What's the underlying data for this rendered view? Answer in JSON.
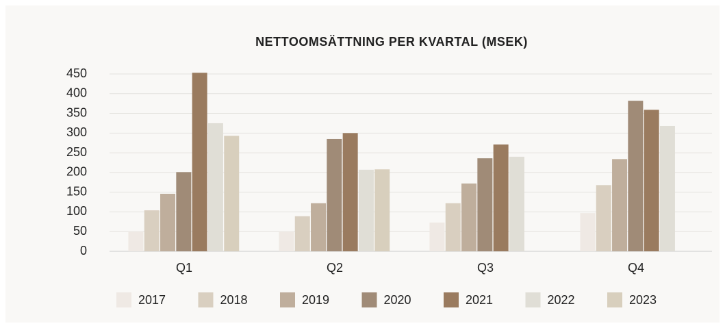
{
  "chart_data": {
    "type": "bar",
    "title": "NETTOOMSÄTTNING PER KVARTAL (MSEK)",
    "categories": [
      "Q1",
      "Q2",
      "Q3",
      "Q4"
    ],
    "series": [
      {
        "name": "2017",
        "color": "#efe9e4",
        "values": [
          50,
          50,
          73,
          97
        ]
      },
      {
        "name": "2018",
        "color": "#d9cfc0",
        "values": [
          104,
          89,
          122,
          168
        ]
      },
      {
        "name": "2019",
        "color": "#bfae9c",
        "values": [
          146,
          122,
          172,
          234
        ]
      },
      {
        "name": "2020",
        "color": "#a08b77",
        "values": [
          201,
          285,
          236,
          382
        ]
      },
      {
        "name": "2021",
        "color": "#9a7b5f",
        "values": [
          453,
          300,
          271,
          359
        ]
      },
      {
        "name": "2022",
        "color": "#e0ded6",
        "values": [
          325,
          207,
          240,
          318
        ]
      },
      {
        "name": "2023",
        "color": "#d8cfbd",
        "values": [
          293,
          208,
          null,
          null
        ]
      }
    ],
    "ylim": [
      0,
      450
    ],
    "yticks": [
      0,
      50,
      100,
      150,
      200,
      250,
      300,
      350,
      400,
      450
    ],
    "grid": true
  }
}
